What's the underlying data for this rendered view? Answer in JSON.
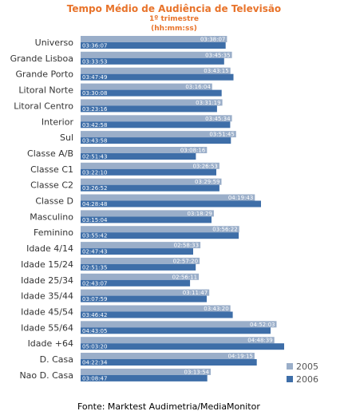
{
  "chart_data": {
    "type": "bar",
    "orientation": "horizontal",
    "title": "Tempo Médio de Audiência  de Televisão",
    "subtitle_line1": "1º trimestre",
    "subtitle_line2": "(hh:mm:ss)",
    "source": "Fonte: Marktest Audimetria/MediaMonitor",
    "legend_position": "bottom-right",
    "grid": false,
    "xlim_seconds": [
      0,
      20000
    ],
    "categories": [
      "Universo",
      "Grande Lisboa",
      "Grande Porto",
      "Litoral Norte",
      "Litoral Centro",
      "Interior",
      "Sul",
      "Classe A/B",
      "Classe C1",
      "Classe C2",
      "Classe D",
      "Masculino",
      "Feminino",
      "Idade 4/14",
      "Idade 15/24",
      "Idade 25/34",
      "Idade 35/44",
      "Idade 45/54",
      "Idade 55/64",
      "Idade +64",
      "D. Casa",
      "Nao D. Casa"
    ],
    "series": [
      {
        "name": "2005",
        "color": "#9aaec9",
        "labels": [
          "03:38:07",
          "03:45:35",
          "03:43:15",
          "03:16:04",
          "03:31:19",
          "03:45:34",
          "03:51:45",
          "03:08:16",
          "03:26:53",
          "03:29:59",
          "04:19:43",
          "03:18:29",
          "03:56:22",
          "02:58:33",
          "02:57:20",
          "02:56:11",
          "03:11:47",
          "03:43:20",
          "04:52:03",
          "04:48:39",
          "04:19:15",
          "03:13:54"
        ],
        "values": [
          13087,
          13535,
          13395,
          11764,
          12679,
          13534,
          13905,
          11296,
          12413,
          12599,
          15583,
          11909,
          14182,
          10713,
          10640,
          10571,
          11507,
          13400,
          17523,
          17319,
          15555,
          11634
        ]
      },
      {
        "name": "2006",
        "color": "#3e6ea8",
        "labels": [
          "03:36:07",
          "03:33:53",
          "03:47:49",
          "03:30:08",
          "03:23:16",
          "03:42:58",
          "03:43:58",
          "02:51:43",
          "03:22:10",
          "03:26:52",
          "04:28:48",
          "03:15:04",
          "03:55:42",
          "02:47:43",
          "02:51:35",
          "02:43:07",
          "03:07:59",
          "03:46:42",
          "04:43:05",
          "05:03:20",
          "04:22:34",
          "03:08:47"
        ],
        "values": [
          12967,
          12833,
          13669,
          12608,
          12196,
          13378,
          13438,
          10303,
          12130,
          12412,
          16128,
          11704,
          14142,
          10063,
          10295,
          9787,
          11279,
          13602,
          16985,
          18200,
          15754,
          11327
        ]
      }
    ]
  }
}
